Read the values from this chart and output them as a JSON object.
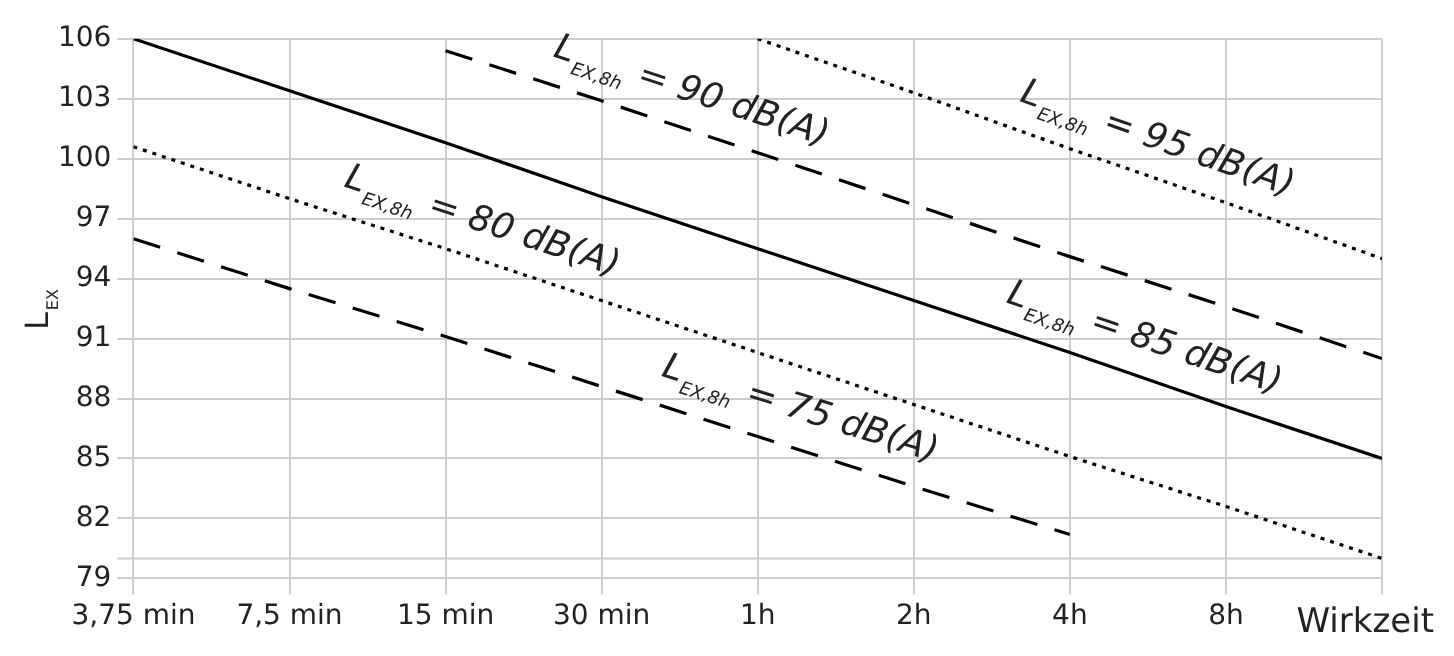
{
  "chart_data": {
    "type": "line",
    "ylabel": "L$_{EX}$",
    "xlabel": "Wirkzeit",
    "grid": true,
    "marker": "none",
    "categories": [
      "3,75 min",
      "7,5 min",
      "15 min",
      "30 min",
      "1h",
      "2h",
      "4h",
      "8h",
      null
    ],
    "ylim": [
      79,
      106
    ],
    "yticks": [
      79,
      82,
      85,
      88,
      91,
      94,
      97,
      100,
      103,
      106
    ],
    "ref_lines": [
      {
        "axis": "y",
        "value": 80,
        "label": null,
        "color": "#cccccc"
      }
    ],
    "series": [
      {
        "name": "L$_{EX,8h}$ = 85 dB(A)",
        "color": "#000000",
        "line_style": "solid",
        "values": [
          106,
          103.4,
          100.8,
          98.1,
          95.5,
          92.9,
          90.3,
          87.6,
          85
        ]
      },
      {
        "name": "L$_{EX,8h}$ = 90 dB(A)",
        "color": "#000000",
        "line_style": "dashed",
        "values": [
          null,
          null,
          105.4,
          102.9,
          100.3,
          97.7,
          95.1,
          92.6,
          90
        ]
      },
      {
        "name": "L$_{EX,8h}$ = 95 dB(A)",
        "color": "#000000",
        "line_style": "dotted",
        "values": [
          null,
          null,
          null,
          null,
          106,
          103.3,
          100.5,
          97.8,
          95
        ]
      },
      {
        "name": "L$_{EX,8h}$ = 80 dB(A)",
        "color": "#000000",
        "line_style": "dotted",
        "values": [
          100.6,
          98,
          95.5,
          92.9,
          90.3,
          87.7,
          85.1,
          82.6,
          80
        ]
      },
      {
        "name": "L$_{EX,8h}$ = 75 dB(A)",
        "color": "#000000",
        "line_style": "dashed",
        "values": [
          96,
          93.5,
          91.1,
          88.6,
          86.1,
          83.6,
          81.2,
          null,
          null
        ]
      }
    ]
  }
}
